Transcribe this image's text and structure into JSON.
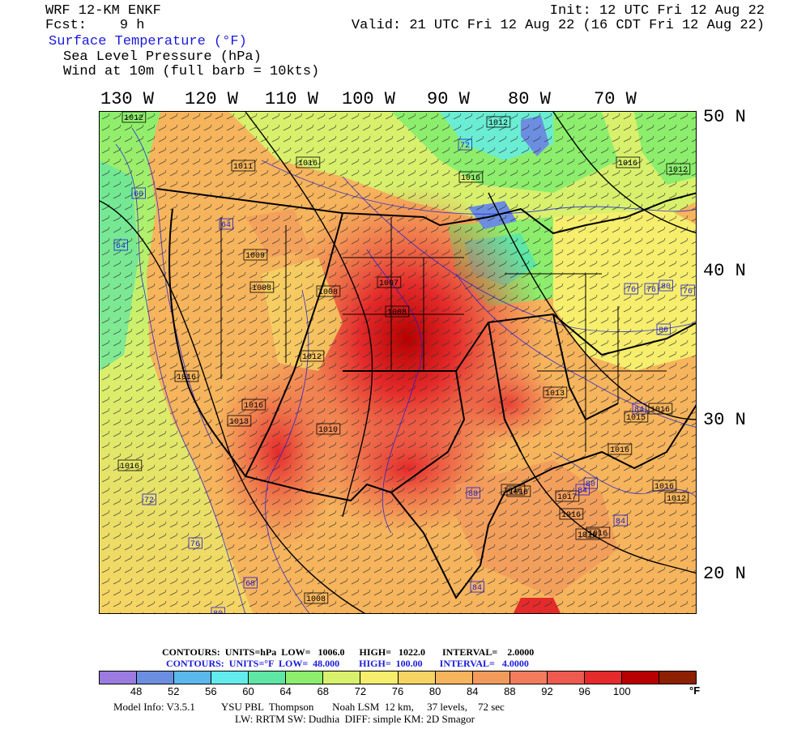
{
  "header": {
    "model": "WRF 12-KM ENKF",
    "fcst": "Fcst:    9 h",
    "init": "Init: 12 UTC Fri 12 Aug 22",
    "valid": "Valid: 21 UTC Fri 12 Aug 22 (16 CDT Fri 12 Aug 22)",
    "field1": "Surface Temperature (°F)",
    "field2": "Sea Level Pressure (hPa)",
    "field3": "Wind at 10m (full barb = 10kts)"
  },
  "lon_labels": [
    "130 W",
    "120 W",
    "110 W",
    "100 W",
    "90 W",
    "80 W",
    "70 W"
  ],
  "lat_labels": [
    "50 N",
    "40 N",
    "30 N",
    "20 N"
  ],
  "pressure_labels": [
    "1012",
    "1012",
    "1016",
    "1011",
    "1016",
    "1012",
    "1016",
    "1016",
    "1016",
    "1016",
    "1016",
    "1016",
    "1016",
    "1016",
    "1017",
    "1016",
    "1016",
    "1016",
    "1013",
    "1012",
    "1008",
    "1008",
    "1008",
    "1009",
    "1008",
    "1010",
    "1007",
    "1012",
    "1013",
    "1015",
    "1016"
  ],
  "temp_labels": [
    "72",
    "60",
    "64",
    "64",
    "76",
    "80",
    "84",
    "84",
    "84",
    "88",
    "80",
    "76",
    "72",
    "76",
    "80",
    "68",
    "76",
    "80",
    "84"
  ],
  "pressure_label_color": "#000000",
  "temp_label_color": "#1a1adc",
  "contours": {
    "line1_label": "CONTOURS:  UNITS=hPa  LOW=   1006.0      HIGH=   1022.0       INTERVAL=    2.0000",
    "line2_label": "CONTOURS:  UNITS=°F  LOW=  48.000        HIGH=  100.00       INTERVAL=   4.0000",
    "pressure": {
      "units": "hPa",
      "low": "1006.0",
      "high": "1022.0",
      "interval": "2.0000"
    },
    "temperature": {
      "units": "°F",
      "low": "48.000",
      "high": "100.00",
      "interval": "4.0000"
    }
  },
  "legend": {
    "colors": [
      "#9b7be0",
      "#6c8ee0",
      "#5ab8ec",
      "#62ecec",
      "#5ee6a4",
      "#8cee6c",
      "#d8f06c",
      "#f6ee6c",
      "#f6d464",
      "#f6b45c",
      "#f29a5c",
      "#f27c5c",
      "#ee5a50",
      "#e42a2a",
      "#b80000",
      "#8c2000"
    ],
    "ticks": [
      "48",
      "52",
      "56",
      "60",
      "64",
      "68",
      "72",
      "76",
      "80",
      "84",
      "88",
      "92",
      "96",
      "100"
    ],
    "unit": "°F"
  },
  "model_info": {
    "line1": "Model Info: V3.5.1          YSU PBL  Thompson       Noah LSM  12 km,     37 levels,    72 sec",
    "line2": "LW: RRTM SW: Dudhia  DIFF: simple KM: 2D Smagor"
  }
}
